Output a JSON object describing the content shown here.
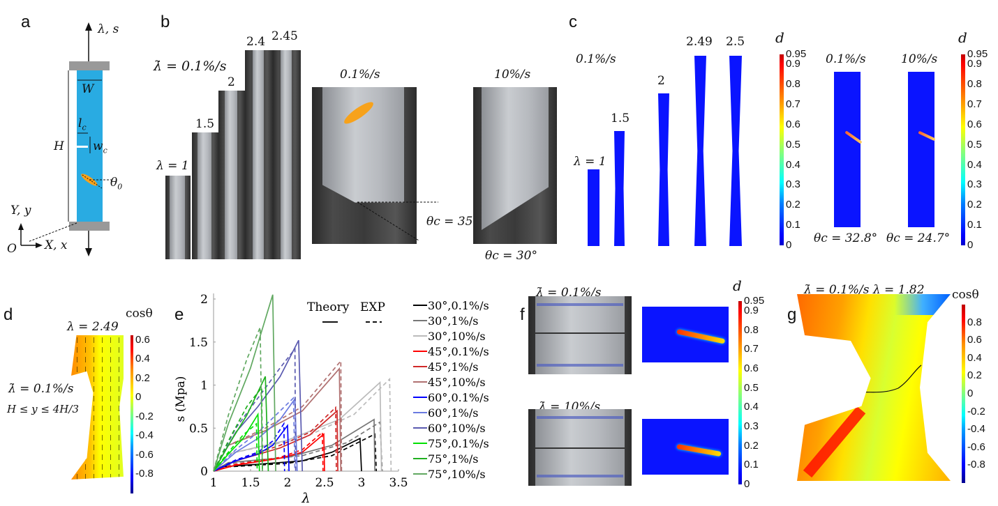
{
  "panel_labels": {
    "a": "a",
    "b": "b",
    "c": "c",
    "d": "d",
    "e": "e",
    "f": "f",
    "g": "g"
  },
  "panel_a": {
    "load": "λ, s",
    "width": "W",
    "height": "H",
    "crack_length": "l",
    "crack_length_sub": "c",
    "crack_width": "w",
    "crack_width_sub": "c",
    "fiber_angle": "θ",
    "fiber_angle_sub": "0",
    "y_axis": "Y, y",
    "x_axis": "X, x",
    "origin": "O"
  },
  "panel_b": {
    "rate": "λ̇ = 0.1%/s",
    "stretches": [
      "λ = 1",
      "1.5",
      "2",
      "2.4",
      "2.45"
    ],
    "photo1_rate": "0.1%/s",
    "photo2_rate": "10%/s",
    "angle1": "θc = 35°",
    "angle2": "θc = 30°"
  },
  "panel_c": {
    "rate": "0.1%/s",
    "stretches": [
      "λ = 1",
      "1.5",
      "2",
      "2.49",
      "2.5"
    ],
    "cbar_title": "d",
    "cbar_ticks": [
      "0.95",
      "0.9",
      "0.8",
      "0.7",
      "0.6",
      "0.5",
      "0.4",
      "0.3",
      "0.2",
      "0.1",
      "0"
    ],
    "sim1_rate": "0.1%/s",
    "sim2_rate": "10%/s",
    "angle1": "θc = 32.8°",
    "angle2": "θc = 24.7°"
  },
  "panel_d": {
    "stretch": "λ = 2.49",
    "cbar_title": "cosθ",
    "cbar_ticks": [
      "0.6",
      "0.4",
      "0.2",
      "0",
      "-0.2",
      "-0.4",
      "-0.6",
      "-0.8"
    ],
    "rate": "λ̇ = 0.1%/s",
    "region": "H ≤ y ≤ 4H/3"
  },
  "panel_f": {
    "rate1": "λ̇ = 0.1%/s",
    "rate2": "λ̇ = 10%/s",
    "cbar_title": "d",
    "cbar_ticks": [
      "0.95",
      "0.9",
      "0.8",
      "0.7",
      "0.6",
      "0.5",
      "0.4",
      "0.3",
      "0.2",
      "0.1",
      "0"
    ]
  },
  "panel_g": {
    "title": "λ̇ = 0.1%/s  λ = 1.82",
    "cbar_title": "cosθ",
    "cbar_ticks": [
      "0.8",
      "0.6",
      "0.4",
      "0.2",
      "0",
      "-0.2",
      "-0.4",
      "-0.6",
      "-0.8"
    ]
  },
  "colors": {
    "specimen": "#29abe2",
    "clamp": "#999999",
    "fiber": "#f7a21b",
    "sim_blue": "#0a14ff"
  },
  "chart_data": {
    "type": "line",
    "title": "",
    "xlabel": "λ",
    "ylabel": "s (Mpa)",
    "xlim": [
      1,
      3.5
    ],
    "ylim": [
      0,
      2.1
    ],
    "xticks": [
      "1",
      "1.5",
      "2",
      "2.5",
      "3",
      "3.5"
    ],
    "yticks": [
      "0",
      "0.5",
      "1",
      "1.5",
      "2"
    ],
    "style_legend": {
      "theory": "Theory",
      "exp": "EXP"
    },
    "series": [
      {
        "name": "30°,0.1%/s",
        "color": "#000000",
        "theory": [
          [
            1,
            0
          ],
          [
            1.1,
            0.05
          ],
          [
            1.6,
            0.08
          ],
          [
            2.2,
            0.12
          ],
          [
            2.6,
            0.22
          ],
          [
            2.98,
            0.38
          ],
          [
            3.0,
            0
          ]
        ],
        "exp": [
          [
            1,
            0
          ],
          [
            1.2,
            0.05
          ],
          [
            2.0,
            0.09
          ],
          [
            2.6,
            0.18
          ],
          [
            3.18,
            0.43
          ],
          [
            3.2,
            0
          ]
        ]
      },
      {
        "name": "30°,1%/s",
        "color": "#777777",
        "theory": [
          [
            1,
            0
          ],
          [
            1.2,
            0.1
          ],
          [
            2.0,
            0.16
          ],
          [
            2.6,
            0.3
          ],
          [
            3.17,
            0.6
          ],
          [
            3.18,
            0
          ]
        ],
        "exp": [
          [
            1,
            0
          ],
          [
            1.3,
            0.1
          ],
          [
            2.2,
            0.18
          ],
          [
            2.8,
            0.33
          ],
          [
            3.25,
            0.57
          ],
          [
            3.28,
            0
          ]
        ]
      },
      {
        "name": "30°,10%/s",
        "color": "#bbbbbb",
        "theory": [
          [
            1,
            0
          ],
          [
            1.2,
            0.2
          ],
          [
            2.0,
            0.36
          ],
          [
            2.7,
            0.6
          ],
          [
            3.25,
            1.03
          ],
          [
            3.27,
            0
          ]
        ],
        "exp": [
          [
            1,
            0
          ],
          [
            1.3,
            0.22
          ],
          [
            2.2,
            0.38
          ],
          [
            2.9,
            0.66
          ],
          [
            3.38,
            1.07
          ],
          [
            3.4,
            0
          ]
        ]
      },
      {
        "name": "45°,0.1%/s",
        "color": "#ff0000",
        "theory": [
          [
            1,
            0
          ],
          [
            1.3,
            0.07
          ],
          [
            1.9,
            0.15
          ],
          [
            2.2,
            0.22
          ],
          [
            2.49,
            0.43
          ],
          [
            2.5,
            0
          ]
        ],
        "exp": [
          [
            1,
            0
          ],
          [
            1.3,
            0.08
          ],
          [
            1.9,
            0.16
          ],
          [
            2.2,
            0.25
          ],
          [
            2.47,
            0.45
          ],
          [
            2.48,
            0
          ]
        ]
      },
      {
        "name": "45°,1%/s",
        "color": "#d02828",
        "theory": [
          [
            1,
            0
          ],
          [
            1.3,
            0.12
          ],
          [
            1.9,
            0.27
          ],
          [
            2.3,
            0.42
          ],
          [
            2.67,
            0.7
          ],
          [
            2.68,
            0
          ]
        ],
        "exp": [
          [
            1,
            0
          ],
          [
            1.3,
            0.13
          ],
          [
            1.9,
            0.3
          ],
          [
            2.3,
            0.45
          ],
          [
            2.65,
            0.74
          ],
          [
            2.66,
            0
          ]
        ]
      },
      {
        "name": "45°,10%/s",
        "color": "#b07070",
        "theory": [
          [
            1,
            0
          ],
          [
            1.2,
            0.3
          ],
          [
            1.7,
            0.47
          ],
          [
            2.2,
            0.7
          ],
          [
            2.7,
            1.19
          ],
          [
            2.72,
            0
          ]
        ],
        "exp": [
          [
            1,
            0
          ],
          [
            1.2,
            0.3
          ],
          [
            1.7,
            0.5
          ],
          [
            2.2,
            0.75
          ],
          [
            2.72,
            1.28
          ],
          [
            2.73,
            0
          ]
        ]
      },
      {
        "name": "60°,0.1%/s",
        "color": "#0000ff",
        "theory": [
          [
            1,
            0
          ],
          [
            1.3,
            0.12
          ],
          [
            1.6,
            0.2
          ],
          [
            1.8,
            0.3
          ],
          [
            2.0,
            0.53
          ],
          [
            2.02,
            0
          ]
        ],
        "exp": [
          [
            1,
            0
          ],
          [
            1.3,
            0.13
          ],
          [
            1.6,
            0.22
          ],
          [
            1.8,
            0.35
          ],
          [
            1.95,
            0.55
          ],
          [
            1.96,
            0
          ]
        ]
      },
      {
        "name": "60°,1%/s",
        "color": "#6a7ae0",
        "theory": [
          [
            1,
            0
          ],
          [
            1.3,
            0.22
          ],
          [
            1.6,
            0.38
          ],
          [
            1.9,
            0.6
          ],
          [
            2.1,
            0.84
          ],
          [
            2.13,
            0
          ]
        ],
        "exp": [
          [
            1,
            0
          ],
          [
            1.3,
            0.25
          ],
          [
            1.6,
            0.45
          ],
          [
            1.9,
            0.7
          ],
          [
            2.08,
            0.85
          ],
          [
            2.1,
            0
          ]
        ]
      },
      {
        "name": "60°,10%/s",
        "color": "#5a5ab0",
        "theory": [
          [
            1,
            0
          ],
          [
            1.3,
            0.45
          ],
          [
            1.6,
            0.75
          ],
          [
            1.9,
            1.1
          ],
          [
            2.15,
            1.52
          ],
          [
            2.2,
            0
          ]
        ],
        "exp": [
          [
            1,
            0
          ],
          [
            1.3,
            0.5
          ],
          [
            1.6,
            0.85
          ],
          [
            1.9,
            1.2
          ],
          [
            2.1,
            1.42
          ],
          [
            2.11,
            0
          ]
        ]
      },
      {
        "name": "75°,0.1%/s",
        "color": "#00e000",
        "theory": [
          [
            1,
            0
          ],
          [
            1.2,
            0.2
          ],
          [
            1.4,
            0.38
          ],
          [
            1.6,
            0.66
          ],
          [
            1.62,
            0
          ]
        ],
        "exp": [
          [
            1,
            0
          ],
          [
            1.2,
            0.22
          ],
          [
            1.4,
            0.42
          ],
          [
            1.58,
            0.55
          ],
          [
            1.59,
            0
          ]
        ]
      },
      {
        "name": "75°,1%/s",
        "color": "#20b020",
        "theory": [
          [
            1,
            0
          ],
          [
            1.2,
            0.3
          ],
          [
            1.45,
            0.65
          ],
          [
            1.7,
            1.1
          ],
          [
            1.74,
            0
          ]
        ],
        "exp": [
          [
            1,
            0
          ],
          [
            1.2,
            0.35
          ],
          [
            1.45,
            0.75
          ],
          [
            1.65,
            0.97
          ],
          [
            1.66,
            0
          ]
        ]
      },
      {
        "name": "75°,10%/s",
        "color": "#60a860",
        "theory": [
          [
            1,
            0
          ],
          [
            1.2,
            0.55
          ],
          [
            1.5,
            1.2
          ],
          [
            1.8,
            2.05
          ],
          [
            1.84,
            0
          ]
        ],
        "exp": [
          [
            1,
            0
          ],
          [
            1.2,
            0.65
          ],
          [
            1.45,
            1.3
          ],
          [
            1.63,
            1.67
          ],
          [
            1.66,
            0
          ]
        ]
      }
    ]
  }
}
